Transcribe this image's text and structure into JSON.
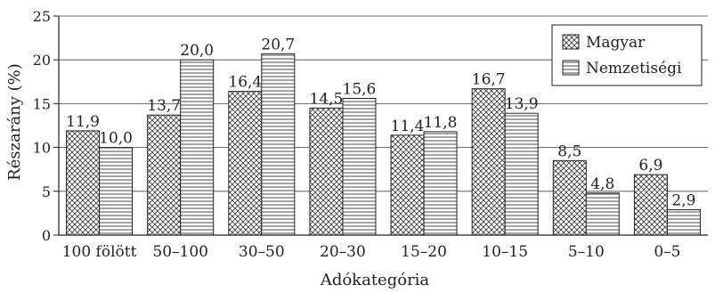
{
  "chart_data": {
    "type": "bar",
    "xlabel": "Adókategória",
    "ylabel": "Részarány (%)",
    "ylim": [
      0,
      25
    ],
    "yticks": [
      "0",
      "5",
      "10",
      "15",
      "20",
      "25"
    ],
    "grid": "horizontal",
    "legend_position": "top-right",
    "categories": [
      "100 fölött",
      "50–100",
      "30–50",
      "20–30",
      "15–20",
      "10–15",
      "5–10",
      "0–5"
    ],
    "series": [
      {
        "name": "Magyar",
        "pattern": "crosshatch",
        "values": [
          11.9,
          13.7,
          16.4,
          14.5,
          11.4,
          16.7,
          8.5,
          6.9
        ],
        "labels": [
          "11,9",
          "13,7",
          "16,4",
          "14,5",
          "11,4",
          "16,7",
          "8,5",
          "6,9"
        ]
      },
      {
        "name": "Nemzetiségi",
        "pattern": "horizontal-lines",
        "values": [
          10.0,
          20.0,
          20.7,
          15.6,
          11.8,
          13.9,
          4.8,
          2.9
        ],
        "labels": [
          "10,0",
          "20,0",
          "20,7",
          "15,6",
          "11,8",
          "13,9",
          "4,8",
          "2,9"
        ]
      }
    ]
  }
}
